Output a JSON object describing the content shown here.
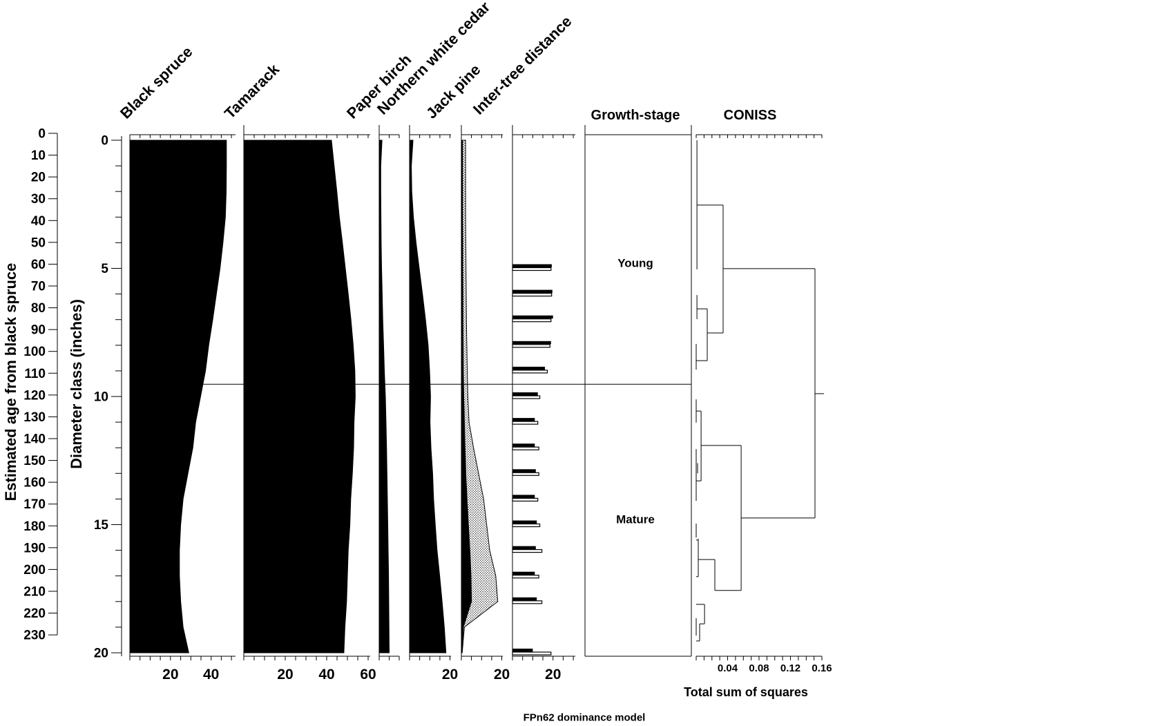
{
  "chart_data": {
    "type": "area",
    "subtype": "stratigraphic-dominance-diagram",
    "caption": "FPn62 dominance model",
    "age_axis": {
      "title": "Estimated age from black spruce",
      "ticks": [
        0,
        10,
        20,
        30,
        40,
        50,
        60,
        70,
        80,
        90,
        100,
        110,
        120,
        130,
        140,
        150,
        160,
        170,
        180,
        190,
        200,
        210,
        220,
        230
      ],
      "range": [
        0,
        237
      ]
    },
    "diameter_axis": {
      "title": "Diameter class (inches)",
      "ticks": [
        0,
        5,
        10,
        15,
        20
      ],
      "minor_step": 1,
      "range": [
        0,
        20
      ]
    },
    "zone_line_diameter": 9.52,
    "zones": [
      {
        "label": "Young",
        "diameter": 4.8
      },
      {
        "label": "Mature",
        "diameter": 14.8
      }
    ],
    "diameters": [
      0,
      1,
      2,
      3,
      4,
      5,
      6,
      7,
      8,
      9,
      10,
      11,
      12,
      13,
      14,
      15,
      16,
      17,
      18,
      19,
      20
    ],
    "panels": [
      {
        "name": "Black spruce",
        "type": "silhouette",
        "xmax": 52,
        "bottom_ticks": [
          20,
          40
        ],
        "tick_step": 5,
        "values": [
          47.5,
          47.5,
          47.4,
          47.0,
          45.8,
          44.4,
          42.6,
          40.8,
          38.8,
          37.2,
          34.8,
          32.4,
          31.0,
          28.6,
          26.2,
          25.0,
          24.4,
          24.4,
          25.0,
          26.2,
          29.0
        ]
      },
      {
        "name": "Tamarack",
        "type": "silhouette",
        "xmax": 61,
        "bottom_ticks": [
          20,
          40,
          60
        ],
        "tick_step": 5,
        "values": [
          42.3,
          43.6,
          44.9,
          46.1,
          47.6,
          49.0,
          50.4,
          51.7,
          52.8,
          53.6,
          53.8,
          53.2,
          53.0,
          52.4,
          51.6,
          51.2,
          50.4,
          50.0,
          49.6,
          48.8,
          48.3
        ]
      },
      {
        "name": "Paper birch",
        "type": "silhouette",
        "xmax": 10,
        "bottom_ticks": [],
        "tick_step": 5,
        "values": [
          1.4,
          0.8,
          0.8,
          0.9,
          1.0,
          1.2,
          1.5,
          1.8,
          2.2,
          2.6,
          3.1,
          3.4,
          3.7,
          3.9,
          4.1,
          4.3,
          4.5,
          4.7,
          4.8,
          4.9,
          5.0
        ]
      },
      {
        "name": "Northern white cedar",
        "type": "silhouette",
        "xmax": 20.5,
        "bottom_ticks": [
          20
        ],
        "tick_step": 5,
        "values": [
          1.7,
          0.9,
          1.1,
          1.9,
          3.2,
          4.8,
          6.4,
          7.9,
          9.2,
          9.9,
          10.4,
          10.1,
          10.6,
          11.4,
          11.9,
          12.7,
          13.6,
          14.9,
          16.1,
          17.2,
          18.0
        ]
      },
      {
        "name": "Jack pine",
        "type": "silhouette-exaggerated",
        "xmax": 20.5,
        "bottom_ticks": [
          20
        ],
        "tick_step": 5,
        "values": [
          0.6,
          0.6,
          0.6,
          0.6,
          0.7,
          0.7,
          0.8,
          0.8,
          0.9,
          1.0,
          1.2,
          1.5,
          1.8,
          2.2,
          2.8,
          3.5,
          4.2,
          4.8,
          5.0,
          1.0,
          0.3
        ],
        "exaggerated_values": [
          2.1,
          2.1,
          2.1,
          2.1,
          2.2,
          2.3,
          2.4,
          2.5,
          2.7,
          2.9,
          3.2,
          3.8,
          6.0,
          8.5,
          11.0,
          12.5,
          14.0,
          17.0,
          18.0,
          1.5,
          0.4
        ]
      },
      {
        "name": "Inter-tree distance",
        "type": "paired-bars",
        "xmax": 31,
        "bottom_ticks": [
          20
        ],
        "tick_step": 5,
        "bars": [
          {
            "d": 5,
            "solid": 19.4,
            "open": 19.0
          },
          {
            "d": 6,
            "solid": 19.7,
            "open": 19.3
          },
          {
            "d": 7,
            "solid": 20.0,
            "open": 19.0
          },
          {
            "d": 8,
            "solid": 19.0,
            "open": 18.5
          },
          {
            "d": 9,
            "solid": 16.0,
            "open": 17.2
          },
          {
            "d": 10,
            "solid": 12.5,
            "open": 13.5
          },
          {
            "d": 11,
            "solid": 11.0,
            "open": 12.5
          },
          {
            "d": 12,
            "solid": 11.0,
            "open": 13.0
          },
          {
            "d": 13,
            "solid": 11.5,
            "open": 13.0
          },
          {
            "d": 14,
            "solid": 11.0,
            "open": 12.5
          },
          {
            "d": 15,
            "solid": 12.0,
            "open": 13.5
          },
          {
            "d": 16,
            "solid": 11.5,
            "open": 14.5
          },
          {
            "d": 17,
            "solid": 11.0,
            "open": 13.0
          },
          {
            "d": 18,
            "solid": 12.0,
            "open": 14.5
          },
          {
            "d": 20,
            "solid": 10.0,
            "open": 19.0
          }
        ]
      },
      {
        "name": "Growth-stage",
        "type": "zone-panel"
      },
      {
        "name": "CONISS",
        "type": "dendrogram",
        "xmax": 0.16,
        "tick_step": 0.01,
        "bottom_ticks": [
          "0.04",
          "0.08",
          "0.12",
          "0.16"
        ],
        "xlabel": "Total sum of squares",
        "segments": [
          [
            "v",
            0.001,
            0.0,
            5.04
          ],
          [
            "h",
            2.53,
            0.001,
            0.0343
          ],
          [
            "v",
            0.0343,
            2.53,
            7.52
          ],
          [
            "h",
            5.01,
            0.0343,
            0.1512
          ],
          [
            "v",
            0.001,
            6.04,
            6.98
          ],
          [
            "h",
            6.58,
            0.001,
            0.0141
          ],
          [
            "v",
            0.0141,
            6.58,
            8.6
          ],
          [
            "h",
            7.52,
            0.0141,
            0.0343
          ],
          [
            "v",
            0.0,
            7.95,
            8.95
          ],
          [
            "h",
            8.6,
            0.0,
            0.0141
          ],
          [
            "v",
            0.0,
            10.11,
            11.02
          ],
          [
            "h",
            10.57,
            0.0,
            0.0062
          ],
          [
            "v",
            0.0062,
            10.57,
            13.29
          ],
          [
            "h",
            13.29,
            0.0,
            0.0062
          ],
          [
            "v",
            0.0572,
            11.91,
            17.57
          ],
          [
            "h",
            11.91,
            0.0062,
            0.0572
          ],
          [
            "h",
            17.57,
            0.0237,
            0.0572
          ],
          [
            "h",
            14.74,
            0.0572,
            0.1512
          ],
          [
            "v",
            0.1512,
            5.01,
            14.74
          ],
          [
            "h",
            9.89,
            0.1512,
            0.1627
          ],
          [
            "v",
            0.0,
            12.05,
            14.07
          ],
          [
            "v",
            0.0018,
            12.6,
            13.0
          ],
          [
            "v",
            0.0,
            14.96,
            15.5
          ],
          [
            "v",
            0.0026,
            15.55,
            17.03
          ],
          [
            "h",
            15.6,
            0.0,
            0.0026
          ],
          [
            "h",
            17.03,
            0.0,
            0.0026
          ],
          [
            "v",
            0.0237,
            16.36,
            17.57
          ],
          [
            "h",
            16.36,
            0.0026,
            0.0237
          ],
          [
            "v",
            0.0106,
            18.11,
            18.87
          ],
          [
            "h",
            18.11,
            0.0,
            0.0106
          ],
          [
            "h",
            18.87,
            0.0044,
            0.0106
          ],
          [
            "v",
            0.0044,
            18.87,
            19.54
          ],
          [
            "h",
            19.54,
            0.0,
            0.0044
          ],
          [
            "v",
            0.0,
            18.65,
            19.33
          ]
        ]
      }
    ],
    "colors": {
      "ink": "#000000",
      "paper": "#ffffff"
    }
  }
}
